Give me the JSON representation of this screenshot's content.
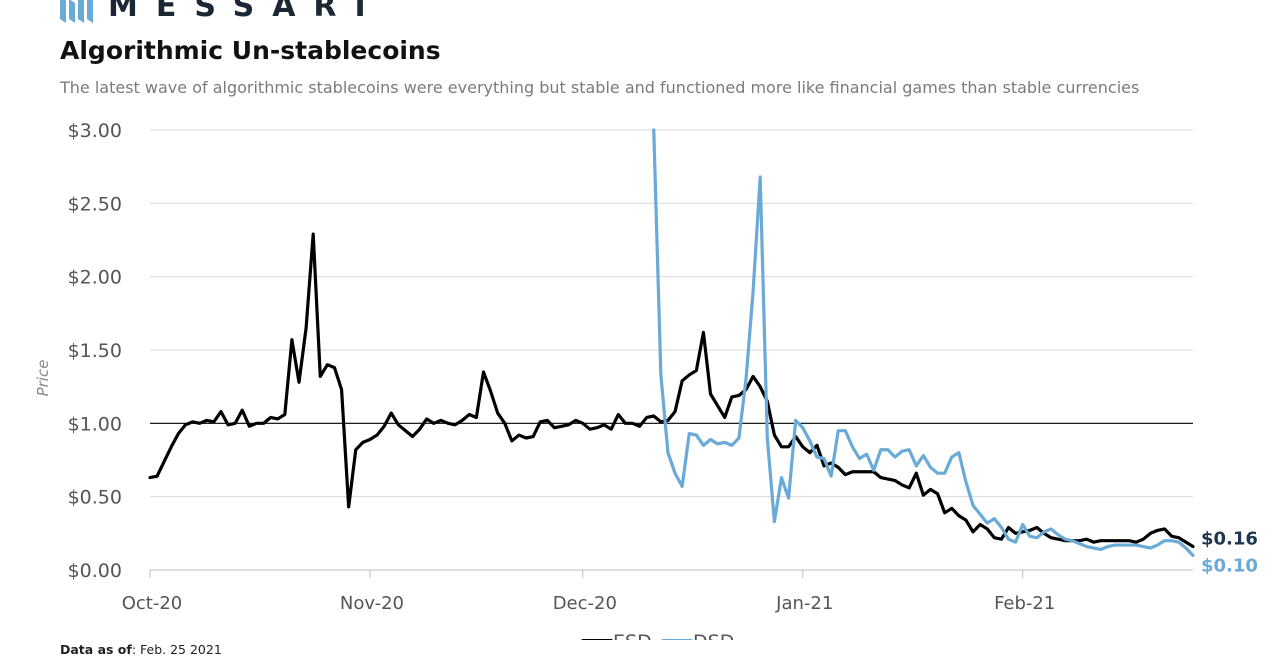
{
  "header": {
    "brand": "MESSARI",
    "title": "Algorithmic Un-stablecoins",
    "subtitle": "The latest wave of algorithmic stablecoins were everything but stable and functioned more like financial games than stable currencies"
  },
  "footer": {
    "data_as_of_label": "Data as of",
    "data_as_of_value": ": Feb. 25 2021"
  },
  "colors": {
    "esd": "#000000",
    "dsd": "#6aaad7",
    "esd_label": "#1f3550",
    "dsd_label": "#6aaad7",
    "grid": "#d9d9d9",
    "brand": "#1b2735"
  },
  "chart_data": {
    "type": "line",
    "title": "",
    "xlabel": "",
    "ylabel": "Price",
    "ylim": [
      0,
      3
    ],
    "yticks": [
      0,
      0.5,
      1,
      1.5,
      2,
      2.5,
      3
    ],
    "ytick_labels": [
      "$0.00",
      "$0.50",
      "$1.00",
      "$1.50",
      "$2.00",
      "$2.50",
      "$3.00"
    ],
    "xlim": [
      "2020-10-01",
      "2021-02-25"
    ],
    "xticks": [
      "2020-10-01",
      "2020-11-01",
      "2020-12-01",
      "2021-01-01",
      "2021-02-01"
    ],
    "xtick_labels": [
      "Oct-20",
      "Nov-20",
      "Dec-20",
      "Jan-21",
      "Feb-21"
    ],
    "reference_line": 1.0,
    "grid": "horizontal",
    "legend_position": "bottom-center",
    "series": [
      {
        "name": "ESD",
        "end_label": "$0.16",
        "points": [
          [
            "2020-10-01",
            0.63
          ],
          [
            "2020-10-02",
            0.64
          ],
          [
            "2020-10-03",
            0.74
          ],
          [
            "2020-10-04",
            0.84
          ],
          [
            "2020-10-05",
            0.93
          ],
          [
            "2020-10-06",
            0.99
          ],
          [
            "2020-10-07",
            1.01
          ],
          [
            "2020-10-08",
            1.0
          ],
          [
            "2020-10-09",
            1.02
          ],
          [
            "2020-10-10",
            1.01
          ],
          [
            "2020-10-11",
            1.08
          ],
          [
            "2020-10-12",
            0.99
          ],
          [
            "2020-10-13",
            1.0
          ],
          [
            "2020-10-14",
            1.09
          ],
          [
            "2020-10-15",
            0.98
          ],
          [
            "2020-10-16",
            1.0
          ],
          [
            "2020-10-17",
            1.0
          ],
          [
            "2020-10-18",
            1.04
          ],
          [
            "2020-10-19",
            1.03
          ],
          [
            "2020-10-20",
            1.06
          ],
          [
            "2020-10-21",
            1.57
          ],
          [
            "2020-10-22",
            1.28
          ],
          [
            "2020-10-23",
            1.65
          ],
          [
            "2020-10-24",
            2.29
          ],
          [
            "2020-10-25",
            1.32
          ],
          [
            "2020-10-26",
            1.4
          ],
          [
            "2020-10-27",
            1.38
          ],
          [
            "2020-10-28",
            1.23
          ],
          [
            "2020-10-29",
            0.43
          ],
          [
            "2020-10-30",
            0.82
          ],
          [
            "2020-10-31",
            0.87
          ],
          [
            "2020-11-01",
            0.89
          ],
          [
            "2020-11-02",
            0.92
          ],
          [
            "2020-11-03",
            0.98
          ],
          [
            "2020-11-04",
            1.07
          ],
          [
            "2020-11-05",
            0.99
          ],
          [
            "2020-11-06",
            0.95
          ],
          [
            "2020-11-07",
            0.91
          ],
          [
            "2020-11-08",
            0.96
          ],
          [
            "2020-11-09",
            1.03
          ],
          [
            "2020-11-10",
            1.0
          ],
          [
            "2020-11-11",
            1.02
          ],
          [
            "2020-11-12",
            1.0
          ],
          [
            "2020-11-13",
            0.99
          ],
          [
            "2020-11-14",
            1.02
          ],
          [
            "2020-11-15",
            1.06
          ],
          [
            "2020-11-16",
            1.04
          ],
          [
            "2020-11-17",
            1.35
          ],
          [
            "2020-11-18",
            1.22
          ],
          [
            "2020-11-19",
            1.07
          ],
          [
            "2020-11-20",
            1.0
          ],
          [
            "2020-11-21",
            0.88
          ],
          [
            "2020-11-22",
            0.92
          ],
          [
            "2020-11-23",
            0.9
          ],
          [
            "2020-11-24",
            0.91
          ],
          [
            "2020-11-25",
            1.01
          ],
          [
            "2020-11-26",
            1.02
          ],
          [
            "2020-11-27",
            0.97
          ],
          [
            "2020-11-28",
            0.98
          ],
          [
            "2020-11-29",
            0.99
          ],
          [
            "2020-11-30",
            1.02
          ],
          [
            "2020-12-01",
            1.0
          ],
          [
            "2020-12-02",
            0.96
          ],
          [
            "2020-12-03",
            0.97
          ],
          [
            "2020-12-04",
            0.99
          ],
          [
            "2020-12-05",
            0.96
          ],
          [
            "2020-12-06",
            1.06
          ],
          [
            "2020-12-07",
            1.0
          ],
          [
            "2020-12-08",
            1.0
          ],
          [
            "2020-12-09",
            0.98
          ],
          [
            "2020-12-10",
            1.04
          ],
          [
            "2020-12-11",
            1.05
          ],
          [
            "2020-12-12",
            1.01
          ],
          [
            "2020-12-13",
            1.02
          ],
          [
            "2020-12-14",
            1.08
          ],
          [
            "2020-12-15",
            1.29
          ],
          [
            "2020-12-16",
            1.33
          ],
          [
            "2020-12-17",
            1.36
          ],
          [
            "2020-12-18",
            1.62
          ],
          [
            "2020-12-19",
            1.2
          ],
          [
            "2020-12-20",
            1.12
          ],
          [
            "2020-12-21",
            1.04
          ],
          [
            "2020-12-22",
            1.18
          ],
          [
            "2020-12-23",
            1.19
          ],
          [
            "2020-12-24",
            1.23
          ],
          [
            "2020-12-25",
            1.32
          ],
          [
            "2020-12-26",
            1.25
          ],
          [
            "2020-12-27",
            1.15
          ],
          [
            "2020-12-28",
            0.92
          ],
          [
            "2020-12-29",
            0.84
          ],
          [
            "2020-12-30",
            0.84
          ],
          [
            "2020-12-31",
            0.91
          ],
          [
            "2021-01-01",
            0.84
          ],
          [
            "2021-01-02",
            0.8
          ],
          [
            "2021-01-03",
            0.85
          ],
          [
            "2021-01-04",
            0.71
          ],
          [
            "2021-01-05",
            0.73
          ],
          [
            "2021-01-06",
            0.7
          ],
          [
            "2021-01-07",
            0.65
          ],
          [
            "2021-01-08",
            0.67
          ],
          [
            "2021-01-09",
            0.67
          ],
          [
            "2021-01-10",
            0.67
          ],
          [
            "2021-01-11",
            0.67
          ],
          [
            "2021-01-12",
            0.63
          ],
          [
            "2021-01-13",
            0.62
          ],
          [
            "2021-01-14",
            0.61
          ],
          [
            "2021-01-15",
            0.58
          ],
          [
            "2021-01-16",
            0.56
          ],
          [
            "2021-01-17",
            0.66
          ],
          [
            "2021-01-18",
            0.51
          ],
          [
            "2021-01-19",
            0.55
          ],
          [
            "2021-01-20",
            0.52
          ],
          [
            "2021-01-21",
            0.39
          ],
          [
            "2021-01-22",
            0.42
          ],
          [
            "2021-01-23",
            0.37
          ],
          [
            "2021-01-24",
            0.34
          ],
          [
            "2021-01-25",
            0.26
          ],
          [
            "2021-01-26",
            0.31
          ],
          [
            "2021-01-27",
            0.28
          ],
          [
            "2021-01-28",
            0.22
          ],
          [
            "2021-01-29",
            0.21
          ],
          [
            "2021-01-30",
            0.29
          ],
          [
            "2021-01-31",
            0.25
          ],
          [
            "2021-02-01",
            0.26
          ],
          [
            "2021-02-02",
            0.27
          ],
          [
            "2021-02-03",
            0.29
          ],
          [
            "2021-02-04",
            0.25
          ],
          [
            "2021-02-05",
            0.22
          ],
          [
            "2021-02-06",
            0.21
          ],
          [
            "2021-02-07",
            0.2
          ],
          [
            "2021-02-08",
            0.2
          ],
          [
            "2021-02-09",
            0.2
          ],
          [
            "2021-02-10",
            0.21
          ],
          [
            "2021-02-11",
            0.19
          ],
          [
            "2021-02-12",
            0.2
          ],
          [
            "2021-02-13",
            0.2
          ],
          [
            "2021-02-14",
            0.2
          ],
          [
            "2021-02-15",
            0.2
          ],
          [
            "2021-02-16",
            0.2
          ],
          [
            "2021-02-17",
            0.19
          ],
          [
            "2021-02-18",
            0.21
          ],
          [
            "2021-02-19",
            0.25
          ],
          [
            "2021-02-20",
            0.27
          ],
          [
            "2021-02-21",
            0.28
          ],
          [
            "2021-02-22",
            0.23
          ],
          [
            "2021-02-23",
            0.22
          ],
          [
            "2021-02-24",
            0.19
          ],
          [
            "2021-02-25",
            0.16
          ]
        ]
      },
      {
        "name": "DSD",
        "end_label": "$0.10",
        "points": [
          [
            "2020-12-11",
            3.0
          ],
          [
            "2020-12-12",
            1.33
          ],
          [
            "2020-12-13",
            0.8
          ],
          [
            "2020-12-14",
            0.66
          ],
          [
            "2020-12-15",
            0.57
          ],
          [
            "2020-12-16",
            0.93
          ],
          [
            "2020-12-17",
            0.92
          ],
          [
            "2020-12-18",
            0.85
          ],
          [
            "2020-12-19",
            0.89
          ],
          [
            "2020-12-20",
            0.86
          ],
          [
            "2020-12-21",
            0.87
          ],
          [
            "2020-12-22",
            0.85
          ],
          [
            "2020-12-23",
            0.9
          ],
          [
            "2020-12-24",
            1.3
          ],
          [
            "2020-12-25",
            1.9
          ],
          [
            "2020-12-26",
            2.68
          ],
          [
            "2020-12-27",
            0.9
          ],
          [
            "2020-12-28",
            0.33
          ],
          [
            "2020-12-29",
            0.63
          ],
          [
            "2020-12-30",
            0.49
          ],
          [
            "2020-12-31",
            1.02
          ],
          [
            "2021-01-01",
            0.97
          ],
          [
            "2021-01-02",
            0.88
          ],
          [
            "2021-01-03",
            0.77
          ],
          [
            "2021-01-04",
            0.76
          ],
          [
            "2021-01-05",
            0.64
          ],
          [
            "2021-01-06",
            0.95
          ],
          [
            "2021-01-07",
            0.95
          ],
          [
            "2021-01-08",
            0.84
          ],
          [
            "2021-01-09",
            0.76
          ],
          [
            "2021-01-10",
            0.79
          ],
          [
            "2021-01-11",
            0.68
          ],
          [
            "2021-01-12",
            0.82
          ],
          [
            "2021-01-13",
            0.82
          ],
          [
            "2021-01-14",
            0.77
          ],
          [
            "2021-01-15",
            0.81
          ],
          [
            "2021-01-16",
            0.82
          ],
          [
            "2021-01-17",
            0.71
          ],
          [
            "2021-01-18",
            0.78
          ],
          [
            "2021-01-19",
            0.7
          ],
          [
            "2021-01-20",
            0.66
          ],
          [
            "2021-01-21",
            0.66
          ],
          [
            "2021-01-22",
            0.77
          ],
          [
            "2021-01-23",
            0.8
          ],
          [
            "2021-01-24",
            0.6
          ],
          [
            "2021-01-25",
            0.44
          ],
          [
            "2021-01-26",
            0.38
          ],
          [
            "2021-01-27",
            0.32
          ],
          [
            "2021-01-28",
            0.35
          ],
          [
            "2021-01-29",
            0.29
          ],
          [
            "2021-01-30",
            0.21
          ],
          [
            "2021-01-31",
            0.19
          ],
          [
            "2021-02-01",
            0.31
          ],
          [
            "2021-02-02",
            0.23
          ],
          [
            "2021-02-03",
            0.22
          ],
          [
            "2021-02-04",
            0.26
          ],
          [
            "2021-02-05",
            0.28
          ],
          [
            "2021-02-06",
            0.24
          ],
          [
            "2021-02-07",
            0.21
          ],
          [
            "2021-02-08",
            0.2
          ],
          [
            "2021-02-09",
            0.18
          ],
          [
            "2021-02-10",
            0.16
          ],
          [
            "2021-02-11",
            0.15
          ],
          [
            "2021-02-12",
            0.14
          ],
          [
            "2021-02-13",
            0.16
          ],
          [
            "2021-02-14",
            0.17
          ],
          [
            "2021-02-15",
            0.17
          ],
          [
            "2021-02-16",
            0.17
          ],
          [
            "2021-02-17",
            0.17
          ],
          [
            "2021-02-18",
            0.16
          ],
          [
            "2021-02-19",
            0.15
          ],
          [
            "2021-02-20",
            0.17
          ],
          [
            "2021-02-21",
            0.2
          ],
          [
            "2021-02-22",
            0.2
          ],
          [
            "2021-02-23",
            0.19
          ],
          [
            "2021-02-24",
            0.15
          ],
          [
            "2021-02-25",
            0.1
          ]
        ]
      }
    ]
  }
}
